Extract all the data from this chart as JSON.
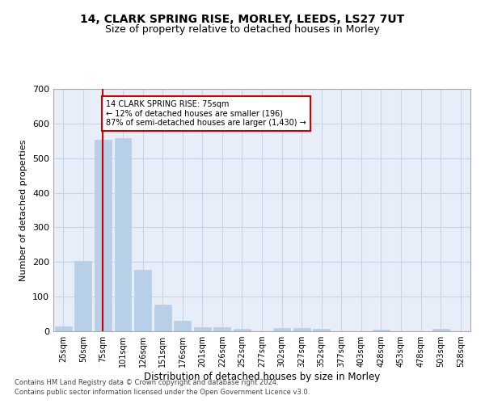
{
  "title1": "14, CLARK SPRING RISE, MORLEY, LEEDS, LS27 7UT",
  "title2": "Size of property relative to detached houses in Morley",
  "xlabel": "Distribution of detached houses by size in Morley",
  "ylabel": "Number of detached properties",
  "categories": [
    "25sqm",
    "50sqm",
    "75sqm",
    "101sqm",
    "126sqm",
    "151sqm",
    "176sqm",
    "201sqm",
    "226sqm",
    "252sqm",
    "277sqm",
    "302sqm",
    "327sqm",
    "352sqm",
    "377sqm",
    "403sqm",
    "428sqm",
    "453sqm",
    "478sqm",
    "503sqm",
    "528sqm"
  ],
  "values": [
    13,
    204,
    553,
    558,
    178,
    78,
    30,
    12,
    12,
    8,
    0,
    10,
    10,
    7,
    0,
    0,
    5,
    0,
    0,
    6,
    0
  ],
  "highlight_index": 2,
  "bar_color": "#b8cfe8",
  "highlight_line_color": "#cc0000",
  "grid_color": "#c8d4e8",
  "annotation_box_text": "14 CLARK SPRING RISE: 75sqm\n← 12% of detached houses are smaller (196)\n87% of semi-detached houses are larger (1,430) →",
  "annotation_box_color": "#cc0000",
  "footer1": "Contains HM Land Registry data © Crown copyright and database right 2024.",
  "footer2": "Contains public sector information licensed under the Open Government Licence v3.0.",
  "ylim": [
    0,
    700
  ],
  "yticks": [
    0,
    100,
    200,
    300,
    400,
    500,
    600,
    700
  ],
  "background_color": "#e8eef7"
}
